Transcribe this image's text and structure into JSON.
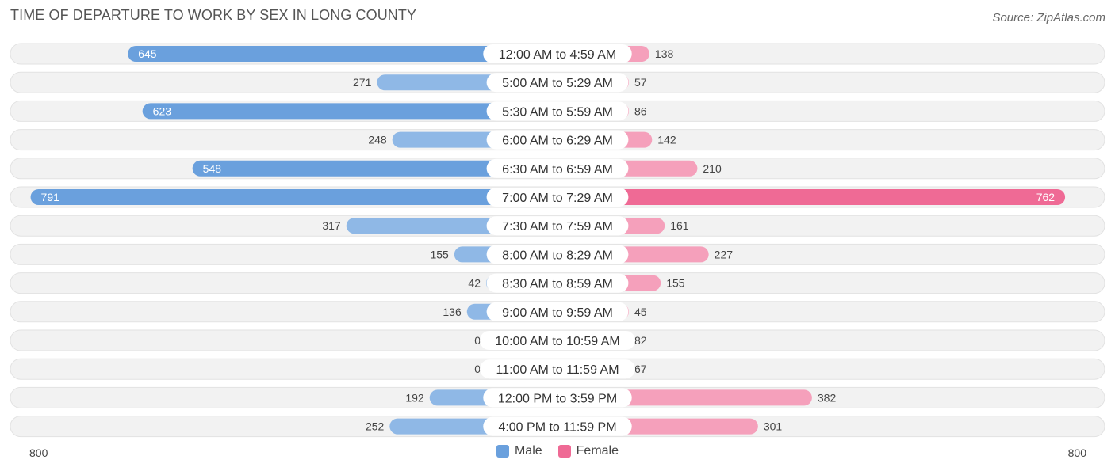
{
  "title": "TIME OF DEPARTURE TO WORK BY SEX IN LONG COUNTY",
  "source": "Source: ZipAtlas.com",
  "colors": {
    "male": "#8fb8e6",
    "male_strong": "#6aa0dd",
    "female": "#f5a0bb",
    "female_strong": "#ef6a95"
  },
  "chart_data": {
    "type": "bar",
    "orientation": "horizontal-diverging",
    "title": "TIME OF DEPARTURE TO WORK BY SEX IN LONG COUNTY",
    "categories": [
      "12:00 AM to 4:59 AM",
      "5:00 AM to 5:29 AM",
      "5:30 AM to 5:59 AM",
      "6:00 AM to 6:29 AM",
      "6:30 AM to 6:59 AM",
      "7:00 AM to 7:29 AM",
      "7:30 AM to 7:59 AM",
      "8:00 AM to 8:29 AM",
      "8:30 AM to 8:59 AM",
      "9:00 AM to 9:59 AM",
      "10:00 AM to 10:59 AM",
      "11:00 AM to 11:59 AM",
      "12:00 PM to 3:59 PM",
      "4:00 PM to 11:59 PM"
    ],
    "series": [
      {
        "name": "Male",
        "values": [
          645,
          271,
          623,
          248,
          548,
          791,
          317,
          155,
          42,
          136,
          0,
          0,
          192,
          252
        ]
      },
      {
        "name": "Female",
        "values": [
          138,
          57,
          86,
          142,
          210,
          762,
          161,
          227,
          155,
          45,
          82,
          67,
          382,
          301
        ]
      }
    ],
    "xlim": [
      -800,
      800
    ],
    "axis_labels": {
      "left": "800",
      "right": "800"
    },
    "legend": [
      "Male",
      "Female"
    ]
  }
}
